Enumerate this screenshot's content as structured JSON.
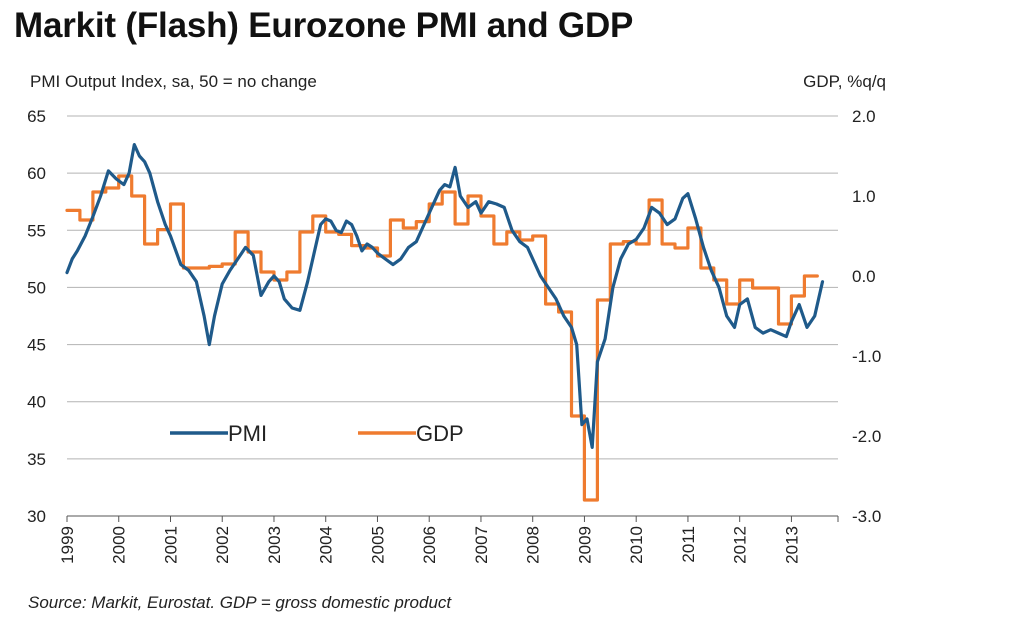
{
  "title": "Markit (Flash) Eurozone PMI and GDP",
  "source": "Source: Markit, Eurostat. GDP = gross domestic product",
  "colors": {
    "pmi": "#1f5a8a",
    "gdp": "#ef7b2f",
    "grid": "#b3b3b3",
    "text": "#222222"
  },
  "chart_data": {
    "type": "line",
    "left_axis": {
      "label": "PMI Output Index, sa, 50 = no change",
      "ylim": [
        30,
        65
      ],
      "ticks": [
        "30",
        "35",
        "40",
        "45",
        "50",
        "55",
        "60",
        "65"
      ]
    },
    "right_axis": {
      "label": "GDP, %q/q",
      "ylim": [
        -3.0,
        2.0
      ],
      "ticks": [
        "-3.0",
        "-2.0",
        "-1.0",
        "0.0",
        "1.0",
        "2.0"
      ]
    },
    "x_tick_labels": [
      "1999",
      "2000",
      "2001",
      "2002",
      "2003",
      "2004",
      "2005",
      "2006",
      "2007",
      "2008",
      "2009",
      "2010",
      "2011",
      "2012",
      "2013"
    ],
    "grid": true,
    "legend": {
      "position": "bottom-left",
      "entries": [
        "PMI",
        "GDP"
      ]
    },
    "series": [
      {
        "name": "PMI",
        "axis": "left",
        "x": [
          1999.0,
          1999.1,
          1999.2,
          1999.35,
          1999.5,
          1999.65,
          1999.8,
          1999.95,
          2000.1,
          2000.2,
          2000.3,
          2000.4,
          2000.5,
          2000.6,
          2000.75,
          2000.9,
          2001.0,
          2001.2,
          2001.35,
          2001.5,
          2001.65,
          2001.75,
          2001.85,
          2002.0,
          2002.15,
          2002.3,
          2002.45,
          2002.6,
          2002.75,
          2002.9,
          2003.0,
          2003.1,
          2003.2,
          2003.35,
          2003.5,
          2003.65,
          2003.8,
          2003.9,
          2004.0,
          2004.1,
          2004.2,
          2004.3,
          2004.4,
          2004.5,
          2004.6,
          2004.7,
          2004.8,
          2004.9,
          2005.0,
          2005.15,
          2005.3,
          2005.45,
          2005.6,
          2005.75,
          2005.9,
          2006.0,
          2006.1,
          2006.2,
          2006.3,
          2006.4,
          2006.5,
          2006.6,
          2006.75,
          2006.9,
          2007.0,
          2007.15,
          2007.3,
          2007.45,
          2007.6,
          2007.75,
          2007.9,
          2008.0,
          2008.15,
          2008.3,
          2008.45,
          2008.6,
          2008.75,
          2008.85,
          2008.95,
          2009.05,
          2009.15,
          2009.25,
          2009.4,
          2009.55,
          2009.7,
          2009.85,
          2010.0,
          2010.15,
          2010.3,
          2010.45,
          2010.6,
          2010.75,
          2010.9,
          2011.0,
          2011.15,
          2011.3,
          2011.45,
          2011.6,
          2011.75,
          2011.9,
          2012.0,
          2012.15,
          2012.3,
          2012.45,
          2012.6,
          2012.75,
          2012.9,
          2013.0,
          2013.15,
          2013.3,
          2013.45,
          2013.6
        ],
        "values": [
          51.3,
          52.5,
          53.2,
          54.5,
          56.2,
          58.0,
          60.2,
          59.5,
          59.0,
          60.0,
          62.5,
          61.5,
          61.0,
          60.0,
          57.5,
          55.5,
          54.5,
          52.0,
          51.5,
          50.5,
          47.5,
          45.0,
          47.5,
          50.3,
          51.5,
          52.5,
          53.5,
          52.8,
          49.3,
          50.5,
          51.0,
          50.5,
          49.0,
          48.2,
          48.0,
          50.5,
          53.5,
          55.5,
          56.0,
          55.8,
          55.0,
          54.8,
          55.8,
          55.5,
          54.5,
          53.2,
          53.8,
          53.5,
          53.0,
          52.5,
          52.0,
          52.5,
          53.5,
          54.0,
          55.5,
          56.5,
          57.5,
          58.5,
          59.0,
          58.8,
          60.5,
          58.0,
          57.0,
          57.5,
          56.5,
          57.5,
          57.3,
          57.0,
          55.0,
          54.0,
          53.5,
          52.5,
          51.0,
          50.0,
          49.0,
          47.5,
          46.5,
          45.0,
          38.0,
          38.5,
          36.0,
          43.5,
          45.5,
          50.0,
          52.5,
          53.8,
          54.2,
          55.2,
          57.0,
          56.5,
          55.5,
          56.0,
          57.8,
          58.2,
          56.0,
          53.5,
          51.5,
          50.0,
          47.5,
          46.5,
          48.5,
          49.0,
          46.5,
          46.0,
          46.3,
          46.0,
          45.7,
          47.0,
          48.5,
          46.5,
          47.5,
          50.5
        ]
      },
      {
        "name": "GDP",
        "axis": "right",
        "x": [
          1999.0,
          1999.25,
          1999.5,
          1999.75,
          2000.0,
          2000.25,
          2000.5,
          2000.75,
          2001.0,
          2001.25,
          2001.5,
          2001.75,
          2002.0,
          2002.25,
          2002.5,
          2002.75,
          2003.0,
          2003.25,
          2003.5,
          2003.75,
          2004.0,
          2004.25,
          2004.5,
          2004.75,
          2005.0,
          2005.25,
          2005.5,
          2005.75,
          2006.0,
          2006.25,
          2006.5,
          2006.75,
          2007.0,
          2007.25,
          2007.5,
          2007.75,
          2008.0,
          2008.25,
          2008.5,
          2008.75,
          2009.0,
          2009.25,
          2009.5,
          2009.75,
          2010.0,
          2010.25,
          2010.5,
          2010.75,
          2011.0,
          2011.25,
          2011.5,
          2011.75,
          2012.0,
          2012.25,
          2012.5,
          2012.75,
          2013.0,
          2013.25
        ],
        "values": [
          0.82,
          0.7,
          1.05,
          1.1,
          1.25,
          1.0,
          0.4,
          0.58,
          0.9,
          0.1,
          0.1,
          0.12,
          0.15,
          0.55,
          0.3,
          0.05,
          -0.05,
          0.05,
          0.55,
          0.75,
          0.55,
          0.52,
          0.38,
          0.35,
          0.25,
          0.7,
          0.6,
          0.68,
          0.9,
          1.05,
          0.65,
          1.0,
          0.75,
          0.4,
          0.55,
          0.45,
          0.5,
          -0.35,
          -0.45,
          -1.75,
          -2.8,
          -0.3,
          0.4,
          0.43,
          0.4,
          0.95,
          0.4,
          0.35,
          0.6,
          0.1,
          -0.05,
          -0.35,
          -0.05,
          -0.15,
          -0.15,
          -0.6,
          -0.25,
          0.0
        ]
      }
    ]
  }
}
